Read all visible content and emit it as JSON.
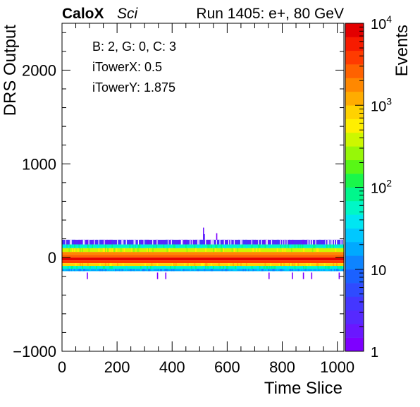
{
  "header": {
    "brand": "CaloX",
    "brand_sub": "Sci",
    "run_info": "Run 1405: e+, 80 GeV"
  },
  "info_box": [
    "B: 2, G: 0, C: 3",
    "iTowerX: 0.5",
    "iTowerY: 1.875"
  ],
  "chart_data": {
    "type": "heatmap",
    "xlabel": "Time Slice",
    "ylabel": "DRS Output",
    "zlabel": "Events",
    "xlim": [
      0,
      1024
    ],
    "ylim": [
      -1000,
      2500
    ],
    "zlim": [
      1,
      10000
    ],
    "zscale": "log",
    "x_ticks": [
      "0",
      "200",
      "400",
      "600",
      "800",
      "1000"
    ],
    "x_tick_values": [
      0,
      200,
      400,
      600,
      800,
      1000
    ],
    "y_ticks": [
      "−1000",
      "0",
      "1000",
      "2000"
    ],
    "y_tick_values": [
      -1000,
      0,
      1000,
      2000
    ],
    "z_ticks": [
      {
        "value": 1,
        "base": "1",
        "exp": ""
      },
      {
        "value": 10,
        "base": "10",
        "exp": ""
      },
      {
        "value": 100,
        "base": "10",
        "exp": "2"
      },
      {
        "value": 1000,
        "base": "10",
        "exp": "3"
      },
      {
        "value": 10000,
        "base": "10",
        "exp": "4"
      }
    ],
    "palette": [
      "#7e00ff",
      "#6a17ff",
      "#5629ff",
      "#4436ff",
      "#2f4bff",
      "#1b61ff",
      "#0e84ff",
      "#00a9ff",
      "#00c8ff",
      "#00e6f2",
      "#00f7c6",
      "#00f78c",
      "#19f74a",
      "#58f716",
      "#97f708",
      "#cdf700",
      "#ffef00",
      "#ffd200",
      "#ffac00",
      "#ff8800",
      "#ff6200",
      "#ff3b00",
      "#f71b00",
      "#e30000"
    ],
    "bands": [
      {
        "y_low": 140,
        "y_high": 190,
        "events": 3,
        "texture": "strong"
      },
      {
        "y_low": 100,
        "y_high": 140,
        "events": 50,
        "texture": "medium"
      },
      {
        "y_low": 60,
        "y_high": 100,
        "events": 450,
        "texture": "light"
      },
      {
        "y_low": 30,
        "y_high": 60,
        "events": 1600,
        "texture": "none"
      },
      {
        "y_low": 0,
        "y_high": 30,
        "events": 2800,
        "texture": "none"
      },
      {
        "y_low": -30,
        "y_high": 0,
        "events": 9000,
        "texture": "none"
      },
      {
        "y_low": -60,
        "y_high": -30,
        "events": 4500,
        "texture": "none"
      },
      {
        "y_low": -90,
        "y_high": -60,
        "events": 700,
        "texture": "light"
      },
      {
        "y_low": -120,
        "y_high": -90,
        "events": 60,
        "texture": "medium"
      },
      {
        "y_low": -145,
        "y_high": -120,
        "events": 15,
        "texture": "strong"
      }
    ],
    "outliers": [
      {
        "x": 512,
        "y_low": 190,
        "y_high": 320,
        "events": 2
      },
      {
        "x": 515,
        "y_low": 190,
        "y_high": 250,
        "events": 3
      },
      {
        "x": 560,
        "y_low": 190,
        "y_high": 260,
        "events": 1
      },
      {
        "x": 90,
        "y_low": -230,
        "y_high": -160,
        "events": 1
      },
      {
        "x": 345,
        "y_low": -230,
        "y_high": -160,
        "events": 1
      },
      {
        "x": 375,
        "y_low": -230,
        "y_high": -160,
        "events": 1
      },
      {
        "x": 750,
        "y_low": -230,
        "y_high": -160,
        "events": 1
      },
      {
        "x": 835,
        "y_low": -230,
        "y_high": -160,
        "events": 1
      },
      {
        "x": 875,
        "y_low": -230,
        "y_high": -160,
        "events": 1
      },
      {
        "x": 905,
        "y_low": -230,
        "y_high": -160,
        "events": 1
      },
      {
        "x": 1005,
        "y_low": -230,
        "y_high": -160,
        "events": 1
      }
    ]
  }
}
